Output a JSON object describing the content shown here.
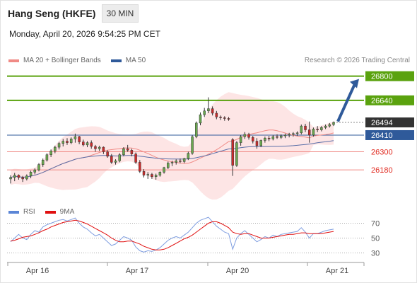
{
  "header": {
    "title": "Hang Seng (HKFE)",
    "timeframe": "30 MIN",
    "timestamp": "Monday, April 20, 2026 9:54:25 PM CET"
  },
  "legend": {
    "items": [
      {
        "label": "MA 20 + Bollinger Bands",
        "color": "#f08a85"
      },
      {
        "label": "MA 50",
        "color": "#2f5a9a"
      }
    ],
    "copyright": "Research © 2026 Trading Central"
  },
  "rsi_legend": {
    "items": [
      {
        "label": "RSI",
        "color": "#5b86d6"
      },
      {
        "label": "9MA",
        "color": "#e01010"
      }
    ]
  },
  "colors": {
    "resistance": "#5aa20e",
    "support": "#f08a85",
    "pivot": "#2f5a9a",
    "last_price": "#333333",
    "bull_candle": "#6aa84f",
    "bear_candle": "#cc2b2b",
    "band_fill": "#fde0e0",
    "arrow": "#2f5a9a"
  },
  "chart_data": [
    {
      "type": "candlestick",
      "name": "price",
      "x_ticks": [
        "Apr 16",
        "Apr 17",
        "Apr 20",
        "Apr 21"
      ],
      "ylim": [
        26040,
        26850
      ],
      "levels": [
        {
          "value": 26800,
          "label": "26800",
          "kind": "resistance"
        },
        {
          "value": 26640,
          "label": "26640",
          "kind": "resistance"
        },
        {
          "value": 26494,
          "label": "26494",
          "kind": "last"
        },
        {
          "value": 26410,
          "label": "26410",
          "kind": "pivot"
        },
        {
          "value": 26300,
          "label": "26300",
          "kind": "support"
        },
        {
          "value": 26180,
          "label": "26180",
          "kind": "support"
        }
      ],
      "arrow": {
        "from": 26500,
        "to": 26800,
        "direction": "up"
      },
      "candles": [
        [
          26120,
          26145,
          26090,
          26130
        ],
        [
          26130,
          26160,
          26105,
          26145
        ],
        [
          26145,
          26150,
          26115,
          26130
        ],
        [
          26130,
          26140,
          26100,
          26120
        ],
        [
          26120,
          26150,
          26110,
          26140
        ],
        [
          26140,
          26175,
          26125,
          26165
        ],
        [
          26165,
          26190,
          26150,
          26180
        ],
        [
          26180,
          26225,
          26170,
          26215
        ],
        [
          26215,
          26255,
          26200,
          26245
        ],
        [
          26245,
          26290,
          26235,
          26280
        ],
        [
          26280,
          26315,
          26265,
          26305
        ],
        [
          26305,
          26340,
          26290,
          26330
        ],
        [
          26330,
          26365,
          26315,
          26355
        ],
        [
          26355,
          26385,
          26335,
          26370
        ],
        [
          26370,
          26390,
          26345,
          26360
        ],
        [
          26360,
          26395,
          26350,
          26385
        ],
        [
          26385,
          26420,
          26360,
          26400
        ],
        [
          26400,
          26405,
          26350,
          26365
        ],
        [
          26365,
          26380,
          26335,
          26345
        ],
        [
          26345,
          26370,
          26330,
          26360
        ],
        [
          26360,
          26375,
          26320,
          26335
        ],
        [
          26335,
          26345,
          26300,
          26320
        ],
        [
          26320,
          26340,
          26305,
          26330
        ],
        [
          26330,
          26335,
          26285,
          26300
        ],
        [
          26300,
          26310,
          26260,
          26270
        ],
        [
          26270,
          26285,
          26220,
          26230
        ],
        [
          26230,
          26250,
          26215,
          26240
        ],
        [
          26240,
          26290,
          26230,
          26280
        ],
        [
          26280,
          26330,
          26270,
          26320
        ],
        [
          26320,
          26345,
          26300,
          26310
        ],
        [
          26310,
          26320,
          26270,
          26285
        ],
        [
          26285,
          26295,
          26220,
          26230
        ],
        [
          26230,
          26245,
          26160,
          26170
        ],
        [
          26170,
          26185,
          26130,
          26145
        ],
        [
          26145,
          26165,
          26120,
          26150
        ],
        [
          26150,
          26160,
          26120,
          26135
        ],
        [
          26135,
          26155,
          26115,
          26145
        ],
        [
          26145,
          26170,
          26135,
          26165
        ],
        [
          26165,
          26200,
          26155,
          26195
        ],
        [
          26195,
          26235,
          26185,
          26225
        ],
        [
          26225,
          26240,
          26205,
          26230
        ],
        [
          26230,
          26250,
          26215,
          26240
        ],
        [
          26240,
          26255,
          26225,
          26235
        ],
        [
          26235,
          26260,
          26225,
          26255
        ],
        [
          26255,
          26300,
          26245,
          26290
        ],
        [
          26290,
          26410,
          26280,
          26400
        ],
        [
          26400,
          26500,
          26390,
          26490
        ],
        [
          26490,
          26560,
          26475,
          26545
        ],
        [
          26545,
          26590,
          26530,
          26570
        ],
        [
          26570,
          26660,
          26555,
          26585
        ],
        [
          26585,
          26600,
          26540,
          26555
        ],
        [
          26555,
          26570,
          26515,
          26530
        ],
        [
          26530,
          26540,
          26510,
          26525
        ],
        [
          26525,
          26535,
          26505,
          26520
        ],
        [
          26520,
          26530,
          26505,
          26515
        ],
        [
          26380,
          26390,
          26140,
          26210
        ],
        [
          26210,
          26370,
          26200,
          26360
        ],
        [
          26360,
          26410,
          26340,
          26400
        ],
        [
          26400,
          26430,
          26385,
          26415
        ],
        [
          26415,
          26425,
          26380,
          26395
        ],
        [
          26395,
          26405,
          26355,
          26370
        ],
        [
          26370,
          26390,
          26320,
          26340
        ],
        [
          26340,
          26380,
          26330,
          26375
        ],
        [
          26375,
          26400,
          26360,
          26390
        ],
        [
          26390,
          26405,
          26370,
          26385
        ],
        [
          26385,
          26410,
          26375,
          26400
        ],
        [
          26400,
          26415,
          26385,
          26395
        ],
        [
          26395,
          26415,
          26385,
          26405
        ],
        [
          26405,
          26420,
          26390,
          26410
        ],
        [
          26410,
          26425,
          26395,
          26415
        ],
        [
          26415,
          26430,
          26400,
          26420
        ],
        [
          26420,
          26435,
          26405,
          26425
        ],
        [
          26425,
          26480,
          26415,
          26470
        ],
        [
          26470,
          26485,
          26430,
          26445
        ],
        [
          26445,
          26500,
          26360,
          26410
        ],
        [
          26410,
          26460,
          26400,
          26450
        ],
        [
          26450,
          26470,
          26430,
          26445
        ],
        [
          26445,
          26470,
          26435,
          26460
        ],
        [
          26460,
          26480,
          26450,
          26470
        ],
        [
          26470,
          26490,
          26460,
          26480
        ],
        [
          26480,
          26500,
          26470,
          26494
        ]
      ]
    },
    {
      "type": "line",
      "name": "rsi",
      "ylim": [
        20,
        80
      ],
      "y_ticks": [
        70,
        50,
        30
      ],
      "series": [
        {
          "name": "RSI",
          "values": [
            45,
            50,
            55,
            50,
            48,
            55,
            60,
            58,
            65,
            68,
            70,
            72,
            74,
            75,
            73,
            75,
            77,
            70,
            65,
            62,
            57,
            53,
            55,
            50,
            45,
            40,
            42,
            47,
            52,
            50,
            47,
            38,
            33,
            31,
            33,
            32,
            34,
            37,
            42,
            47,
            50,
            52,
            50,
            54,
            58,
            64,
            70,
            74,
            76,
            78,
            72,
            66,
            62,
            58,
            56,
            35,
            50,
            56,
            60,
            55,
            50,
            45,
            48,
            52,
            50,
            54,
            52,
            55,
            56,
            57,
            58,
            59,
            64,
            58,
            50,
            56,
            56,
            58,
            60,
            61,
            62
          ]
        },
        {
          "name": "9MA",
          "values": [
            46,
            47,
            49,
            51,
            52,
            53,
            55,
            57,
            60,
            62,
            65,
            67,
            69,
            71,
            72,
            73,
            74,
            73,
            71,
            69,
            66,
            63,
            60,
            57,
            54,
            50,
            47,
            45,
            45,
            46,
            46,
            44,
            42,
            39,
            37,
            35,
            34,
            34,
            35,
            37,
            40,
            43,
            46,
            49,
            51,
            54,
            58,
            62,
            66,
            70,
            72,
            72,
            70,
            67,
            64,
            58,
            56,
            55,
            56,
            56,
            54,
            52,
            50,
            50,
            50,
            51,
            52,
            53,
            54,
            55,
            55,
            56,
            57,
            57,
            56,
            56,
            56,
            56,
            57,
            58,
            59
          ]
        }
      ]
    }
  ]
}
